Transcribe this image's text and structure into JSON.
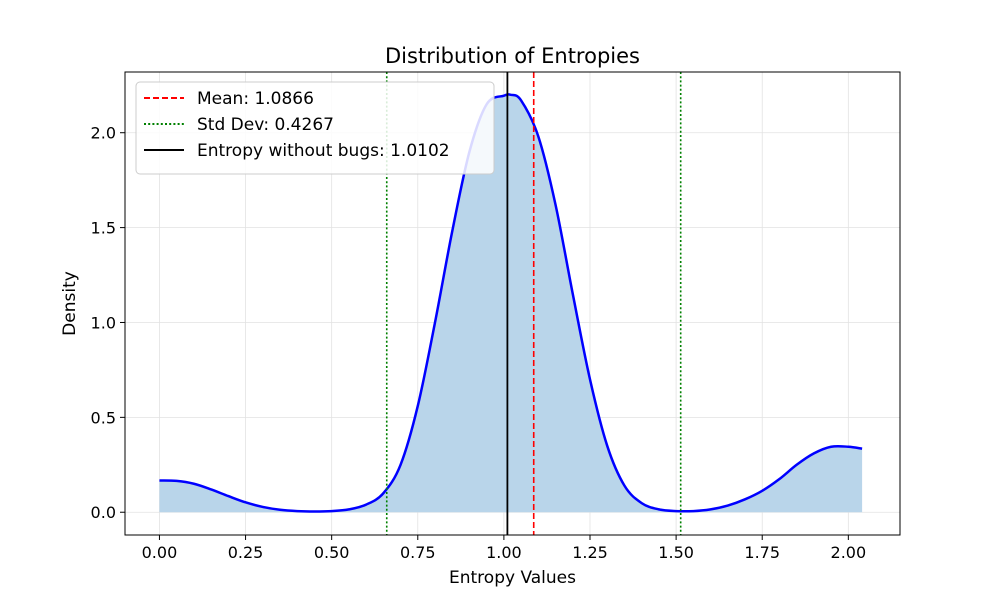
{
  "chart_data": {
    "type": "area",
    "title": "Distribution of Entropies",
    "xlabel": "Entropy Values",
    "ylabel": "Density",
    "xlim": [
      -0.1,
      2.15
    ],
    "ylim": [
      -0.12,
      2.32
    ],
    "xticks": [
      "0.00",
      "0.25",
      "0.50",
      "0.75",
      "1.00",
      "1.25",
      "1.50",
      "1.75",
      "2.00"
    ],
    "yticks": [
      "0.0",
      "0.5",
      "1.0",
      "1.5",
      "2.0"
    ],
    "grid": true,
    "legend_position": "top-left",
    "series": [
      {
        "kind": "density",
        "color": "#0000ff",
        "fill_color": "#b9d5ea",
        "x": [
          0.0,
          0.05,
          0.1,
          0.15,
          0.2,
          0.25,
          0.3,
          0.35,
          0.4,
          0.45,
          0.5,
          0.55,
          0.6,
          0.65,
          0.7,
          0.75,
          0.8,
          0.85,
          0.9,
          0.95,
          1.0,
          1.02,
          1.05,
          1.1,
          1.15,
          1.2,
          1.25,
          1.3,
          1.35,
          1.4,
          1.45,
          1.5,
          1.55,
          1.6,
          1.65,
          1.7,
          1.75,
          1.8,
          1.85,
          1.9,
          1.95,
          2.0,
          2.04
        ],
        "y": [
          0.167,
          0.165,
          0.15,
          0.12,
          0.085,
          0.052,
          0.028,
          0.013,
          0.006,
          0.004,
          0.006,
          0.015,
          0.04,
          0.1,
          0.25,
          0.56,
          1.0,
          1.48,
          1.9,
          2.15,
          2.195,
          2.2,
          2.17,
          1.98,
          1.62,
          1.15,
          0.7,
          0.35,
          0.14,
          0.048,
          0.015,
          0.006,
          0.006,
          0.015,
          0.035,
          0.068,
          0.113,
          0.175,
          0.25,
          0.31,
          0.345,
          0.345,
          0.335
        ]
      }
    ],
    "vlines": [
      {
        "name": "Mean: 1.0866",
        "x": 1.0866,
        "color": "#ff0000",
        "style": "dashed"
      },
      {
        "name": "Std Dev: 0.4267",
        "x": 0.6599,
        "color": "#008000",
        "style": "dotted"
      },
      {
        "name": "Std Dev: 0.4267",
        "x": 1.5133,
        "color": "#008000",
        "style": "dotted"
      },
      {
        "name": "Entropy without bugs: 1.0102",
        "x": 1.0102,
        "color": "#000000",
        "style": "solid"
      }
    ],
    "legend": [
      {
        "label": "Mean: 1.0866",
        "color": "#ff0000",
        "style": "dashed"
      },
      {
        "label": "Std Dev: 0.4267",
        "color": "#008000",
        "style": "dotted"
      },
      {
        "label": "Entropy without bugs: 1.0102",
        "color": "#000000",
        "style": "solid"
      }
    ]
  }
}
